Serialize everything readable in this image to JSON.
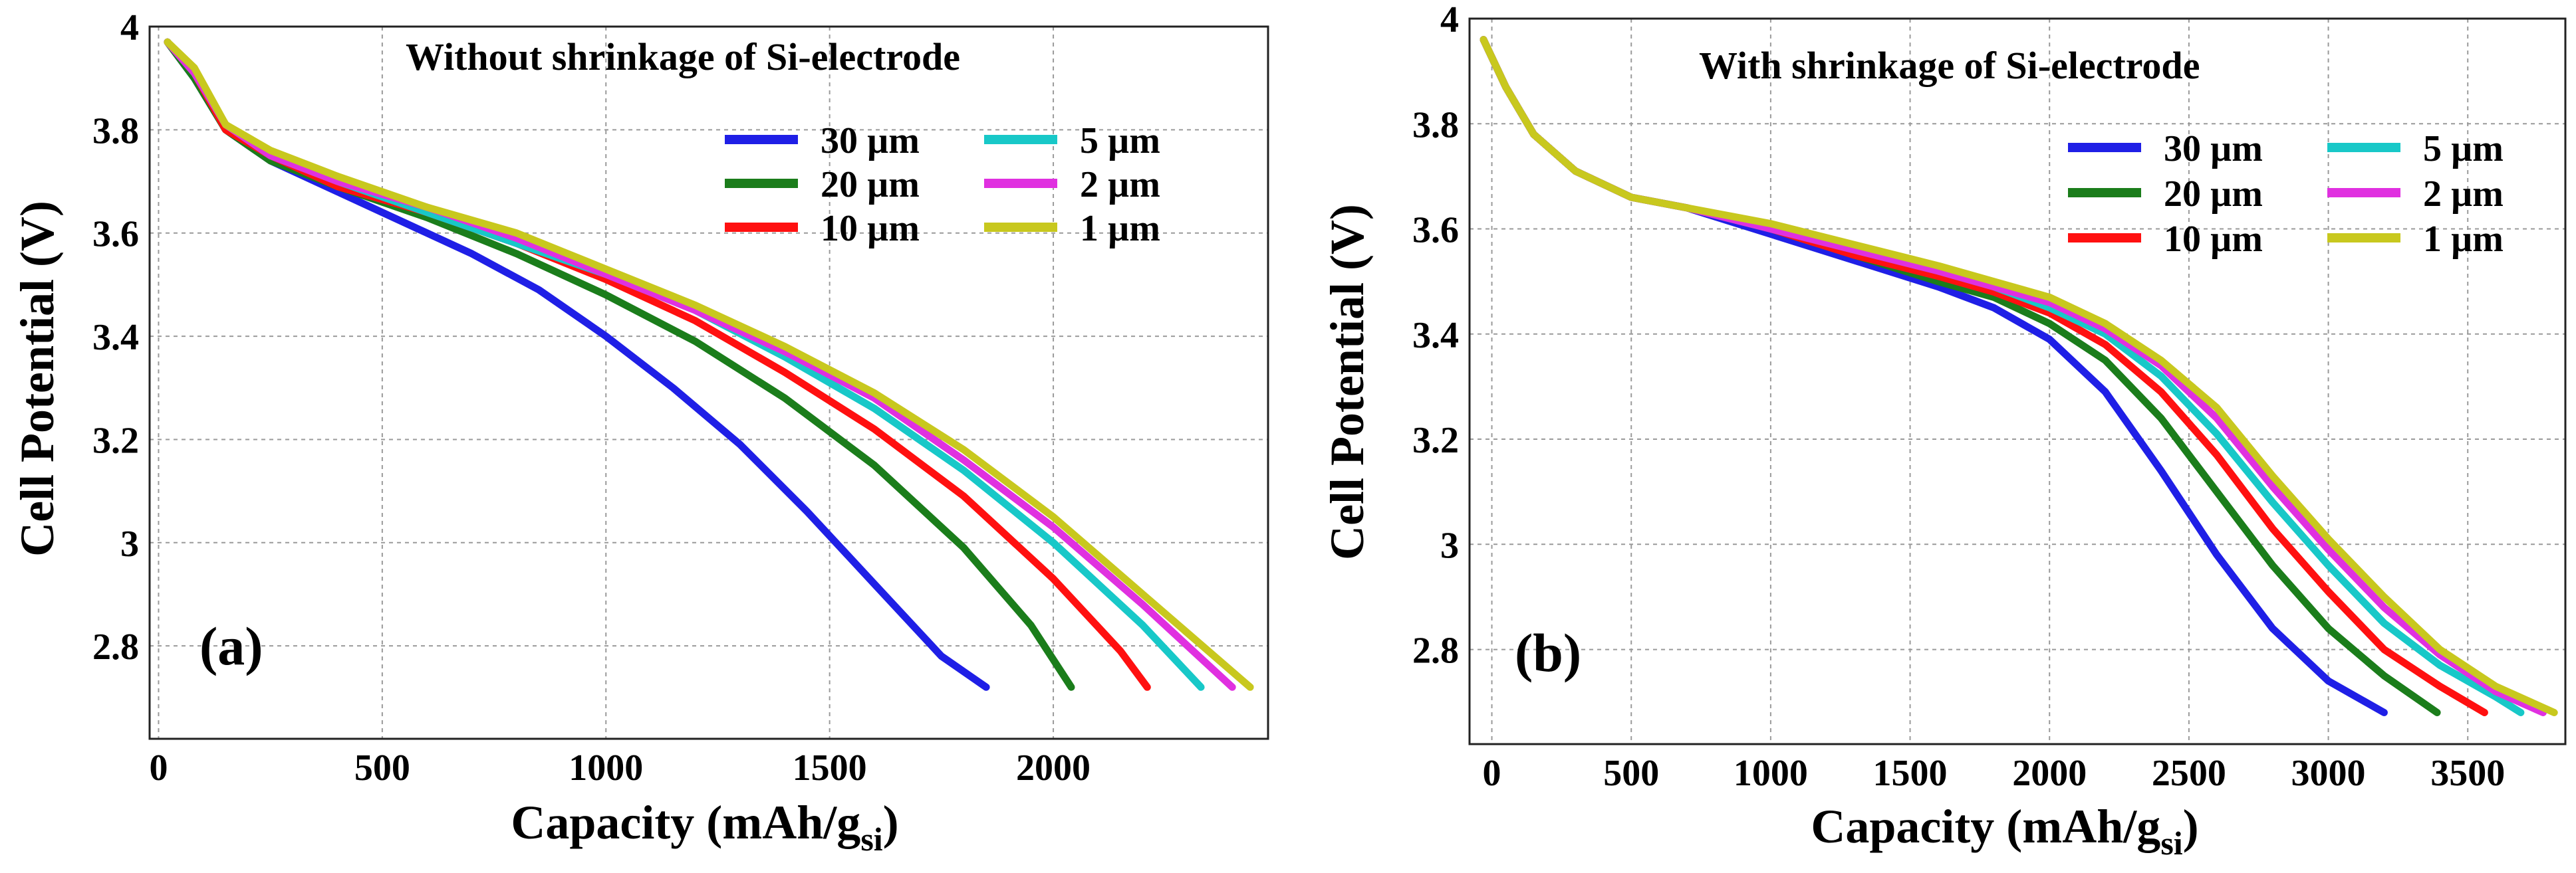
{
  "chart_data": [
    {
      "id": "a",
      "type": "line",
      "title": "Without shrinkage of Si-electrode",
      "panel_label": "(a)",
      "xlabel": "Capacity (mAh/g",
      "xlabel_sub": "si",
      "xlabel_suffix": ")",
      "ylabel": "Cell Potential (V)",
      "xlim": [
        -20,
        2480
      ],
      "ylim": [
        2.62,
        4.0
      ],
      "xticks": [
        0,
        500,
        1000,
        1500,
        2000
      ],
      "xtick_labels": [
        "0",
        "500",
        "1000",
        "1500",
        "2000"
      ],
      "yticks": [
        2.8,
        3.0,
        3.2,
        3.4,
        3.6,
        3.8,
        4.0
      ],
      "ytick_labels": [
        "2.8",
        "3",
        "3.2",
        "3.4",
        "3.6",
        "3.8",
        "4"
      ],
      "grid": true,
      "legend_position": "top-right",
      "series": [
        {
          "name": "30 µm",
          "color": "#1f1fe6",
          "x": [
            20,
            80,
            150,
            250,
            400,
            550,
            700,
            850,
            1000,
            1150,
            1300,
            1450,
            1600,
            1750,
            1850
          ],
          "y": [
            3.97,
            3.9,
            3.8,
            3.74,
            3.68,
            3.62,
            3.56,
            3.49,
            3.4,
            3.3,
            3.19,
            3.06,
            2.92,
            2.78,
            2.72
          ]
        },
        {
          "name": "20 µm",
          "color": "#1b7d1b",
          "x": [
            20,
            80,
            150,
            250,
            400,
            600,
            800,
            1000,
            1200,
            1400,
            1600,
            1800,
            1950,
            2040
          ],
          "y": [
            3.97,
            3.9,
            3.8,
            3.74,
            3.69,
            3.63,
            3.56,
            3.48,
            3.39,
            3.28,
            3.15,
            2.99,
            2.84,
            2.72
          ]
        },
        {
          "name": "10 µm",
          "color": "#ff1010",
          "x": [
            20,
            80,
            150,
            250,
            400,
            600,
            800,
            1000,
            1200,
            1400,
            1600,
            1800,
            2000,
            2150,
            2210
          ],
          "y": [
            3.97,
            3.91,
            3.8,
            3.75,
            3.69,
            3.64,
            3.58,
            3.51,
            3.43,
            3.33,
            3.22,
            3.09,
            2.93,
            2.79,
            2.72
          ]
        },
        {
          "name": "5 µm",
          "color": "#18c8c8",
          "x": [
            20,
            80,
            150,
            250,
            400,
            600,
            800,
            1000,
            1200,
            1400,
            1600,
            1800,
            2000,
            2200,
            2330
          ],
          "y": [
            3.97,
            3.91,
            3.81,
            3.75,
            3.7,
            3.64,
            3.58,
            3.52,
            3.45,
            3.36,
            3.26,
            3.14,
            3.0,
            2.84,
            2.72
          ]
        },
        {
          "name": "2 µm",
          "color": "#e030e0",
          "x": [
            20,
            80,
            150,
            250,
            400,
            600,
            800,
            1000,
            1200,
            1400,
            1600,
            1800,
            2000,
            2200,
            2400
          ],
          "y": [
            3.97,
            3.91,
            3.81,
            3.75,
            3.7,
            3.65,
            3.59,
            3.52,
            3.45,
            3.37,
            3.28,
            3.16,
            3.03,
            2.88,
            2.72
          ]
        },
        {
          "name": "1 µm",
          "color": "#c8c81e",
          "x": [
            20,
            80,
            150,
            250,
            400,
            600,
            800,
            1000,
            1200,
            1400,
            1600,
            1800,
            2000,
            2200,
            2440
          ],
          "y": [
            3.97,
            3.92,
            3.81,
            3.76,
            3.71,
            3.65,
            3.6,
            3.53,
            3.46,
            3.38,
            3.29,
            3.18,
            3.05,
            2.9,
            2.72
          ]
        }
      ]
    },
    {
      "id": "b",
      "type": "line",
      "title": "With shrinkage of Si-electrode",
      "panel_label": "(b)",
      "xlabel": "Capacity (mAh/g",
      "xlabel_sub": "si",
      "xlabel_suffix": ")",
      "ylabel": "Cell Potential (V)",
      "xlim": [
        -80,
        3850
      ],
      "ylim": [
        2.62,
        4.0
      ],
      "xticks": [
        0,
        500,
        1000,
        1500,
        2000,
        2500,
        3000,
        3500
      ],
      "xtick_labels": [
        "0",
        "500",
        "1000",
        "1500",
        "2000",
        "2500",
        "3000",
        "3500"
      ],
      "yticks": [
        2.8,
        3.0,
        3.2,
        3.4,
        3.6,
        3.8,
        4.0
      ],
      "ytick_labels": [
        "2.8",
        "3",
        "3.2",
        "3.4",
        "3.6",
        "3.8",
        "4"
      ],
      "grid": true,
      "legend_position": "top-right",
      "series": [
        {
          "name": "30 µm",
          "color": "#1f1fe6",
          "x": [
            -30,
            50,
            150,
            300,
            500,
            700,
            1000,
            1300,
            1600,
            1800,
            2000,
            2200,
            2400,
            2600,
            2800,
            3000,
            3200
          ],
          "y": [
            3.96,
            3.87,
            3.78,
            3.71,
            3.66,
            3.64,
            3.59,
            3.54,
            3.49,
            3.45,
            3.39,
            3.29,
            3.14,
            2.98,
            2.84,
            2.74,
            2.68
          ]
        },
        {
          "name": "20 µm",
          "color": "#1b7d1b",
          "x": [
            -30,
            50,
            150,
            300,
            500,
            700,
            1000,
            1300,
            1600,
            1800,
            2000,
            2200,
            2400,
            2600,
            2800,
            3000,
            3200,
            3390
          ],
          "y": [
            3.96,
            3.87,
            3.78,
            3.71,
            3.66,
            3.64,
            3.6,
            3.55,
            3.5,
            3.47,
            3.42,
            3.35,
            3.24,
            3.1,
            2.96,
            2.84,
            2.75,
            2.68
          ]
        },
        {
          "name": "10 µm",
          "color": "#ff1010",
          "x": [
            -30,
            50,
            150,
            300,
            500,
            700,
            1000,
            1300,
            1600,
            1800,
            2000,
            2200,
            2400,
            2600,
            2800,
            3000,
            3200,
            3400,
            3560
          ],
          "y": [
            3.96,
            3.87,
            3.78,
            3.71,
            3.66,
            3.64,
            3.6,
            3.55,
            3.51,
            3.48,
            3.44,
            3.38,
            3.29,
            3.17,
            3.03,
            2.91,
            2.8,
            2.73,
            2.68
          ]
        },
        {
          "name": "5 µm",
          "color": "#18c8c8",
          "x": [
            -30,
            50,
            150,
            300,
            500,
            700,
            1000,
            1300,
            1600,
            1800,
            2000,
            2200,
            2400,
            2600,
            2800,
            3000,
            3200,
            3400,
            3600,
            3690
          ],
          "y": [
            3.96,
            3.87,
            3.78,
            3.71,
            3.66,
            3.64,
            3.6,
            3.56,
            3.52,
            3.49,
            3.45,
            3.4,
            3.32,
            3.21,
            3.08,
            2.96,
            2.85,
            2.77,
            2.71,
            2.68
          ]
        },
        {
          "name": "2 µm",
          "color": "#e030e0",
          "x": [
            -30,
            50,
            150,
            300,
            500,
            700,
            1000,
            1300,
            1600,
            1800,
            2000,
            2200,
            2400,
            2600,
            2800,
            3000,
            3200,
            3400,
            3600,
            3770
          ],
          "y": [
            3.96,
            3.87,
            3.78,
            3.71,
            3.66,
            3.64,
            3.6,
            3.56,
            3.52,
            3.49,
            3.46,
            3.41,
            3.34,
            3.24,
            3.11,
            2.99,
            2.88,
            2.79,
            2.72,
            2.68
          ]
        },
        {
          "name": "1 µm",
          "color": "#c8c81e",
          "x": [
            -30,
            50,
            150,
            300,
            500,
            700,
            1000,
            1300,
            1600,
            1800,
            2000,
            2200,
            2400,
            2600,
            2800,
            3000,
            3200,
            3400,
            3600,
            3810
          ],
          "y": [
            3.96,
            3.87,
            3.78,
            3.71,
            3.66,
            3.64,
            3.61,
            3.57,
            3.53,
            3.5,
            3.47,
            3.42,
            3.35,
            3.26,
            3.13,
            3.01,
            2.9,
            2.8,
            2.73,
            2.68
          ]
        }
      ]
    }
  ]
}
